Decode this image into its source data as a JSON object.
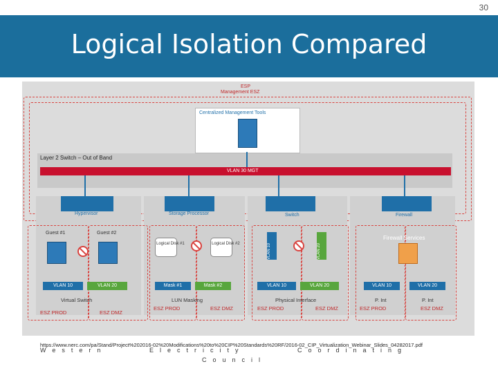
{
  "page_number": "30",
  "title": "Logical Isolation Compared",
  "source_url": "https://www.nerc.com/pa/Stand/Project%202016-02%20Modifications%20to%20CIP%20Standards%20RF/2016-02_CIP_Virtualization_Webinar_Slides_04282017.pdf",
  "footer": {
    "word1": "Western",
    "word2": "Electricity",
    "word3": "Coordinating",
    "word4": "Council"
  },
  "diagram": {
    "esp_label": "ESP",
    "esz_label": "Management ESZ",
    "mgmt_tools": "Centralized Management Tools",
    "l2switch": "Layer 2 Switch – Out of Band",
    "vlan_mgt": "VLAN 30 MGT",
    "hypervisor": "Hypervisor",
    "storage": "Storage Processor",
    "switch": "Switch",
    "firewall": "Firewall",
    "guest1": "Guest #1",
    "guest2": "Guest #2",
    "logical1": "Logical Disk #1",
    "logical2": "Logical Disk #2",
    "vlan10": "VLAN 10",
    "vlan20": "VLAN 20",
    "mask1": "Mask #1",
    "mask2": "Mask #2",
    "firewall_services": "Firewall Services",
    "virtual_switch": "Virtual Switch",
    "lun_masking": "LUN Masking",
    "physical_interface": "Physical Interface",
    "pint": "P. Int",
    "esz_prod": "ESZ PROD",
    "esz_dmz": "ESZ DMZ"
  },
  "colors": {
    "title_bg": "#1b6e9c",
    "diagram_bg": "#dcdcdc",
    "accent_blue": "#1f6fa8",
    "vlan_red": "#c8102e",
    "boundary_red": "#d9433f",
    "vlan_green": "#58a63d"
  }
}
